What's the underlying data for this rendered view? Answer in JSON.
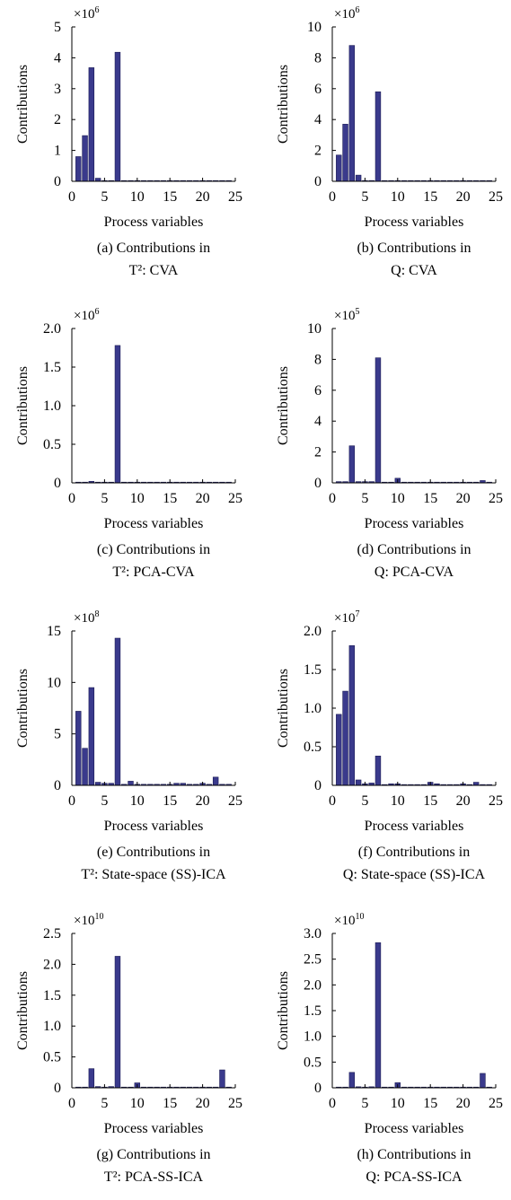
{
  "style": {
    "bar_color": "#3a3a8c",
    "axis_color": "#000000"
  },
  "chart_data": [
    {
      "type": "bar",
      "id": "a",
      "caption_line1": "(a) Contributions in",
      "caption_line2": "T²: CVA",
      "xlabel": "Process variables",
      "ylabel": "Contributions",
      "multiplier": "×10",
      "multiplier_exp": "6",
      "xlim": [
        0,
        25
      ],
      "ylim": [
        0,
        5
      ],
      "xticks": [
        0,
        5,
        10,
        15,
        20,
        25
      ],
      "xtick_labels": [
        "0",
        "5",
        "10",
        "15",
        "20",
        "25"
      ],
      "yticks": [
        0,
        1,
        2,
        3,
        4,
        5
      ],
      "ytick_labels": [
        "0",
        "1",
        "2",
        "3",
        "4",
        "5"
      ],
      "x": [
        1,
        2,
        3,
        4,
        5,
        6,
        7,
        8,
        9,
        10,
        11,
        12,
        13,
        14,
        15,
        16,
        17,
        18,
        19,
        20,
        21,
        22,
        23,
        24
      ],
      "values": [
        0.8,
        1.48,
        3.68,
        0.1,
        0.02,
        0.02,
        4.18,
        0.01,
        0.01,
        0.02,
        0.01,
        0.01,
        0.01,
        0.01,
        0.01,
        0.01,
        0.01,
        0.01,
        0.02,
        0.01,
        0.01,
        0.01,
        0.01,
        0.01
      ]
    },
    {
      "type": "bar",
      "id": "b",
      "caption_line1": "(b) Contributions in",
      "caption_line2": "Q: CVA",
      "xlabel": "Process variables",
      "ylabel": "Contributions",
      "multiplier": "×10",
      "multiplier_exp": "6",
      "xlim": [
        0,
        25
      ],
      "ylim": [
        0,
        10
      ],
      "xticks": [
        0,
        5,
        10,
        15,
        20,
        25
      ],
      "xtick_labels": [
        "0",
        "5",
        "10",
        "15",
        "20",
        "25"
      ],
      "yticks": [
        0,
        2,
        4,
        6,
        8,
        10
      ],
      "ytick_labels": [
        "0",
        "2",
        "4",
        "6",
        "8",
        "10"
      ],
      "x": [
        1,
        2,
        3,
        4,
        5,
        6,
        7,
        8,
        9,
        10,
        11,
        12,
        13,
        14,
        15,
        16,
        17,
        18,
        19,
        20,
        21,
        22,
        23,
        24
      ],
      "values": [
        1.7,
        3.7,
        8.8,
        0.4,
        0.05,
        0.05,
        5.8,
        0.02,
        0.02,
        0.03,
        0.02,
        0.02,
        0.02,
        0.02,
        0.02,
        0.02,
        0.02,
        0.02,
        0.02,
        0.02,
        0.02,
        0.02,
        0.02,
        0.02
      ]
    },
    {
      "type": "bar",
      "id": "c",
      "caption_line1": "(c) Contributions in",
      "caption_line2": "T²: PCA-CVA",
      "xlabel": "Process variables",
      "ylabel": "Contributions",
      "multiplier": "×10",
      "multiplier_exp": "6",
      "xlim": [
        0,
        25
      ],
      "ylim": [
        0,
        2.0
      ],
      "xticks": [
        0,
        5,
        10,
        15,
        20,
        25
      ],
      "xtick_labels": [
        "0",
        "5",
        "10",
        "15",
        "20",
        "25"
      ],
      "yticks": [
        0,
        0.5,
        1.0,
        1.5,
        2.0
      ],
      "ytick_labels": [
        "0",
        "0.5",
        "1.0",
        "1.5",
        "2.0"
      ],
      "x": [
        1,
        2,
        3,
        4,
        5,
        6,
        7,
        8,
        9,
        10,
        11,
        12,
        13,
        14,
        15,
        16,
        17,
        18,
        19,
        20,
        21,
        22,
        23,
        24
      ],
      "values": [
        0.005,
        0.005,
        0.02,
        0.005,
        0.005,
        0.005,
        1.78,
        0.005,
        0.005,
        0.005,
        0.005,
        0.005,
        0.005,
        0.005,
        0.005,
        0.005,
        0.005,
        0.005,
        0.005,
        0.005,
        0.005,
        0.005,
        0.005,
        0.005
      ]
    },
    {
      "type": "bar",
      "id": "d",
      "caption_line1": "(d) Contributions in",
      "caption_line2": "Q: PCA-CVA",
      "xlabel": "Process variables",
      "ylabel": "Contributions",
      "multiplier": "×10",
      "multiplier_exp": "5",
      "xlim": [
        0,
        25
      ],
      "ylim": [
        0,
        10
      ],
      "xticks": [
        0,
        5,
        10,
        15,
        20,
        25
      ],
      "xtick_labels": [
        "0",
        "5",
        "10",
        "15",
        "20",
        "25"
      ],
      "yticks": [
        0,
        2,
        4,
        6,
        8,
        10
      ],
      "ytick_labels": [
        "0",
        "2",
        "4",
        "6",
        "8",
        "10"
      ],
      "x": [
        1,
        2,
        3,
        4,
        5,
        6,
        7,
        8,
        9,
        10,
        11,
        12,
        13,
        14,
        15,
        16,
        17,
        18,
        19,
        20,
        21,
        22,
        23,
        24
      ],
      "values": [
        0.08,
        0.08,
        2.4,
        0.08,
        0.08,
        0.08,
        8.1,
        0.03,
        0.03,
        0.3,
        0.03,
        0.03,
        0.03,
        0.03,
        0.03,
        0.03,
        0.03,
        0.03,
        0.03,
        0.03,
        0.03,
        0.03,
        0.15,
        0.03
      ]
    },
    {
      "type": "bar",
      "id": "e",
      "caption_line1": "(e) Contributions in",
      "caption_line2": "T²: State-space (SS)-ICA",
      "xlabel": "Process variables",
      "ylabel": "Contributions",
      "multiplier": "×10",
      "multiplier_exp": "8",
      "xlim": [
        0,
        25
      ],
      "ylim": [
        0,
        15
      ],
      "xticks": [
        0,
        5,
        10,
        15,
        20,
        25
      ],
      "xtick_labels": [
        "0",
        "5",
        "10",
        "15",
        "20",
        "25"
      ],
      "yticks": [
        0,
        5,
        10,
        15
      ],
      "ytick_labels": [
        "0",
        "5",
        "10",
        "15"
      ],
      "x": [
        1,
        2,
        3,
        4,
        5,
        6,
        7,
        8,
        9,
        10,
        11,
        12,
        13,
        14,
        15,
        16,
        17,
        18,
        19,
        20,
        21,
        22,
        23,
        24
      ],
      "values": [
        7.2,
        3.6,
        9.5,
        0.3,
        0.2,
        0.2,
        14.3,
        0.1,
        0.4,
        0.1,
        0.1,
        0.1,
        0.1,
        0.1,
        0.1,
        0.2,
        0.2,
        0.1,
        0.1,
        0.2,
        0.1,
        0.8,
        0.1,
        0.1
      ]
    },
    {
      "type": "bar",
      "id": "f",
      "caption_line1": "(f) Contributions in",
      "caption_line2": "Q: State-space (SS)-ICA",
      "xlabel": "Process variables",
      "ylabel": "Contributions",
      "multiplier": "×10",
      "multiplier_exp": "7",
      "xlim": [
        0,
        25
      ],
      "ylim": [
        0,
        2.0
      ],
      "xticks": [
        0,
        5,
        10,
        15,
        20,
        25
      ],
      "xtick_labels": [
        "0",
        "5",
        "10",
        "15",
        "20",
        "25"
      ],
      "yticks": [
        0,
        0.5,
        1.0,
        1.5,
        2.0
      ],
      "ytick_labels": [
        "0",
        "0.5",
        "1.0",
        "1.5",
        "2.0"
      ],
      "x": [
        1,
        2,
        3,
        4,
        5,
        6,
        7,
        8,
        9,
        10,
        11,
        12,
        13,
        14,
        15,
        16,
        17,
        18,
        19,
        20,
        21,
        22,
        23,
        24
      ],
      "values": [
        0.92,
        1.22,
        1.81,
        0.07,
        0.02,
        0.03,
        0.38,
        0.01,
        0.02,
        0.02,
        0.01,
        0.01,
        0.01,
        0.01,
        0.04,
        0.02,
        0.01,
        0.01,
        0.01,
        0.02,
        0.01,
        0.04,
        0.01,
        0.01
      ]
    },
    {
      "type": "bar",
      "id": "g",
      "caption_line1": "(g) Contributions in",
      "caption_line2": "T²: PCA-SS-ICA",
      "xlabel": "Process variables",
      "ylabel": "Contributions",
      "multiplier": "×10",
      "multiplier_exp": "10",
      "xlim": [
        0,
        25
      ],
      "ylim": [
        0,
        2.5
      ],
      "xticks": [
        0,
        5,
        10,
        15,
        20,
        25
      ],
      "xtick_labels": [
        "0",
        "5",
        "10",
        "15",
        "20",
        "25"
      ],
      "yticks": [
        0,
        0.5,
        1.0,
        1.5,
        2.0,
        2.5
      ],
      "ytick_labels": [
        "0",
        "0.5",
        "1.0",
        "1.5",
        "2.0",
        "2.5"
      ],
      "x": [
        1,
        2,
        3,
        4,
        5,
        6,
        7,
        8,
        9,
        10,
        11,
        12,
        13,
        14,
        15,
        16,
        17,
        18,
        19,
        20,
        21,
        22,
        23,
        24
      ],
      "values": [
        0.01,
        0.01,
        0.31,
        0.02,
        0.01,
        0.02,
        2.13,
        0.01,
        0.01,
        0.08,
        0.01,
        0.01,
        0.01,
        0.01,
        0.01,
        0.01,
        0.01,
        0.01,
        0.01,
        0.01,
        0.01,
        0.01,
        0.29,
        0.01
      ]
    },
    {
      "type": "bar",
      "id": "h",
      "caption_line1": "(h) Contributions in",
      "caption_line2": "Q: PCA-SS-ICA",
      "xlabel": "Process variables",
      "ylabel": "Contributions",
      "multiplier": "×10",
      "multiplier_exp": "10",
      "xlim": [
        0,
        25
      ],
      "ylim": [
        0,
        3.0
      ],
      "xticks": [
        0,
        5,
        10,
        15,
        20,
        25
      ],
      "xtick_labels": [
        "0",
        "5",
        "10",
        "15",
        "20",
        "25"
      ],
      "yticks": [
        0,
        0.5,
        1.0,
        1.5,
        2.0,
        2.5,
        3.0
      ],
      "ytick_labels": [
        "0",
        "0.5",
        "1.0",
        "1.5",
        "2.0",
        "2.5",
        "3.0"
      ],
      "x": [
        1,
        2,
        3,
        4,
        5,
        6,
        7,
        8,
        9,
        10,
        11,
        12,
        13,
        14,
        15,
        16,
        17,
        18,
        19,
        20,
        21,
        22,
        23,
        24
      ],
      "values": [
        0.01,
        0.01,
        0.3,
        0.02,
        0.01,
        0.02,
        2.82,
        0.01,
        0.01,
        0.1,
        0.01,
        0.01,
        0.01,
        0.01,
        0.01,
        0.01,
        0.01,
        0.01,
        0.01,
        0.01,
        0.01,
        0.01,
        0.28,
        0.01
      ]
    }
  ]
}
